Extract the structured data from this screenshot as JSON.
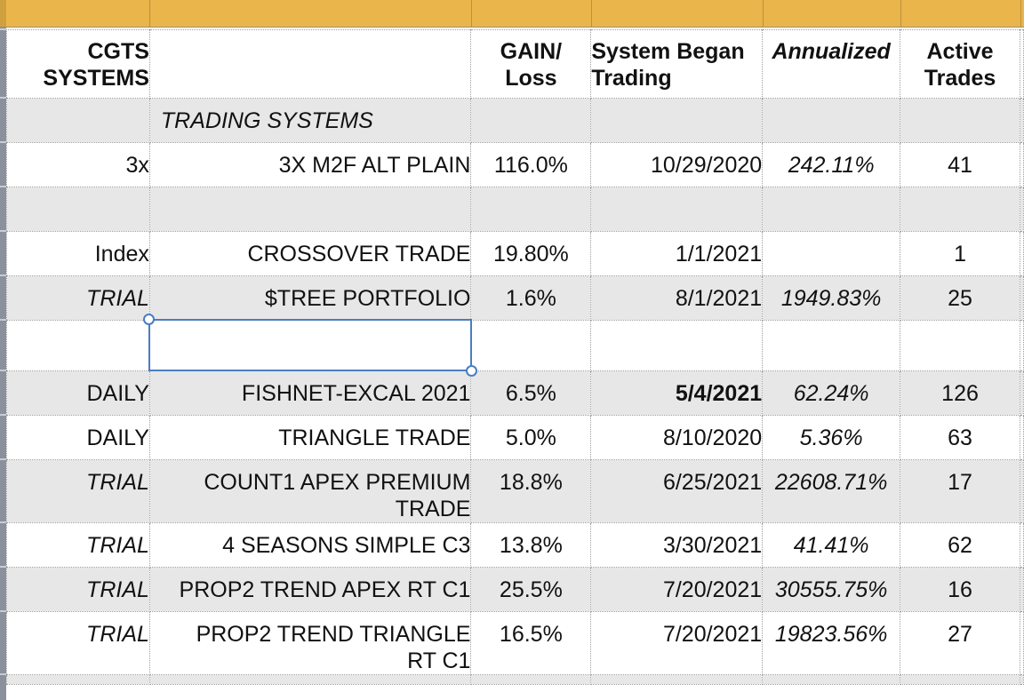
{
  "band": {
    "color": "#EAB54B"
  },
  "selection": {
    "color": "#4A7DC3",
    "state": "empty-cell-selected"
  },
  "table": {
    "title": "CGTS SYSTEMS trading results",
    "columns": [
      {
        "key": "label",
        "header": "CGTS\nSYSTEMS"
      },
      {
        "key": "name",
        "header": ""
      },
      {
        "key": "gain",
        "header": "GAIN/\nLoss"
      },
      {
        "key": "began",
        "header": "System Began\nTrading"
      },
      {
        "key": "annualized",
        "header": "Annualized"
      },
      {
        "key": "trades",
        "header": "Active\nTrades"
      }
    ],
    "rows": [
      {
        "label": "",
        "name": "TRADING SYSTEMS",
        "section": true,
        "gain": "",
        "began": "",
        "annualized": "",
        "trades": "",
        "shaded": true
      },
      {
        "label": "3x",
        "name": "3X M2F ALT PLAIN",
        "gain": "116.0%",
        "began": "10/29/2020",
        "annualized": "242.11%",
        "trades": "41",
        "shaded": false
      },
      {
        "label": "",
        "name": "",
        "gain": "",
        "began": "",
        "annualized": "",
        "trades": "",
        "shaded": true
      },
      {
        "label": "Index",
        "name": "CROSSOVER TRADE",
        "gain": "19.80%",
        "began": "1/1/2021",
        "annualized": "",
        "trades": "1",
        "shaded": false
      },
      {
        "label": "TRIAL",
        "labelItalic": true,
        "name": "$TREE PORTFOLIO",
        "gain": "1.6%",
        "began": "8/1/2021",
        "annualized": "1949.83%",
        "trades": "25",
        "shaded": true
      },
      {
        "label": "",
        "name": "",
        "selected": true,
        "gain": "",
        "began": "",
        "annualized": "",
        "trades": "",
        "shaded": false
      },
      {
        "label": "DAILY",
        "name": "FISHNET-EXCAL 2021",
        "gain": "6.5%",
        "began": "5/4/2021",
        "beganBold": true,
        "annualized": "62.24%",
        "trades": "126",
        "shaded": true
      },
      {
        "label": "DAILY",
        "name": "TRIANGLE TRADE",
        "gain": "5.0%",
        "began": "8/10/2020",
        "annualized": "5.36%",
        "trades": "63",
        "shaded": false
      },
      {
        "label": "TRIAL",
        "labelItalic": true,
        "name": "COUNT1 APEX PREMIUM\nTRADE",
        "gain": "18.8%",
        "began": "6/25/2021",
        "annualized": "22608.71%",
        "trades": "17",
        "shaded": true
      },
      {
        "label": "TRIAL",
        "labelItalic": true,
        "name": "4 SEASONS SIMPLE C3",
        "gain": "13.8%",
        "began": "3/30/2021",
        "annualized": "41.41%",
        "trades": "62",
        "shaded": false
      },
      {
        "label": "TRIAL",
        "labelItalic": true,
        "name": "PROP2 TREND APEX RT C1",
        "gain": "25.5%",
        "began": "7/20/2021",
        "annualized": "30555.75%",
        "trades": "16",
        "shaded": true
      },
      {
        "label": "TRIAL",
        "labelItalic": true,
        "name": "PROP2 TREND TRIANGLE\nRT C1",
        "gain": "16.5%",
        "began": "7/20/2021",
        "annualized": "19823.56%",
        "trades": "27",
        "shaded": false
      },
      {
        "label": "",
        "name": "",
        "cut": true,
        "gain": "",
        "began": "",
        "annualized": "",
        "trades": "",
        "shaded": true
      }
    ]
  }
}
